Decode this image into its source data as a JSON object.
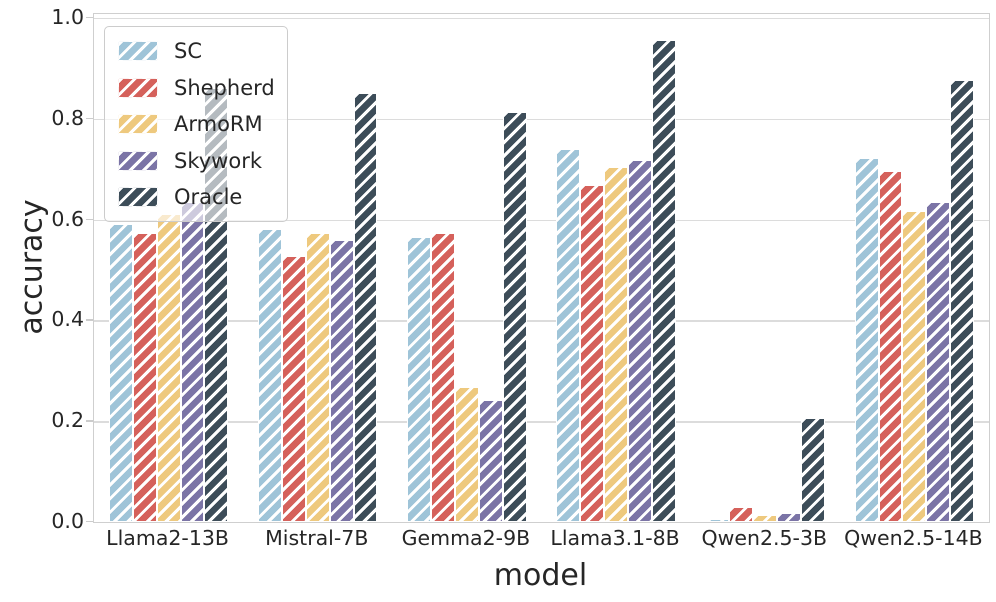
{
  "figure": {
    "xlabel": "model",
    "ylabel": "accuracy"
  },
  "chart_data": {
    "type": "bar",
    "title": "",
    "xlabel": "model",
    "ylabel": "accuracy",
    "ylim": [
      0.0,
      1.0
    ],
    "yticks": [
      0.0,
      0.2,
      0.4,
      0.6,
      0.8,
      1.0
    ],
    "ytick_labels": [
      "0.0",
      "0.2",
      "0.4",
      "0.6",
      "0.8",
      "1.0"
    ],
    "grid": "horizontal",
    "legend_position": "upper-left",
    "hatch": "/",
    "hatch_color": "#ffffff",
    "categories": [
      "Llama2-13B",
      "Mistral-7B",
      "Gemma2-9B",
      "Llama3.1-8B",
      "Qwen2.5-3B",
      "Qwen2.5-14B"
    ],
    "series": [
      {
        "name": "SC",
        "color": "#9FC4D8",
        "values": [
          0.591,
          0.581,
          0.565,
          0.74,
          0.005,
          0.722
        ]
      },
      {
        "name": "Shepherd",
        "color": "#D5615B",
        "values": [
          0.573,
          0.528,
          0.573,
          0.668,
          0.03,
          0.697
        ]
      },
      {
        "name": "ArmoRM",
        "color": "#EEC97E",
        "values": [
          0.611,
          0.573,
          0.268,
          0.705,
          0.013,
          0.617
        ]
      },
      {
        "name": "Skywork",
        "color": "#7B74A6",
        "values": [
          0.635,
          0.56,
          0.242,
          0.719,
          0.017,
          0.635
        ]
      },
      {
        "name": "Oracle",
        "color": "#3D4D59",
        "values": [
          0.861,
          0.851,
          0.813,
          0.956,
          0.206,
          0.878
        ]
      }
    ]
  }
}
